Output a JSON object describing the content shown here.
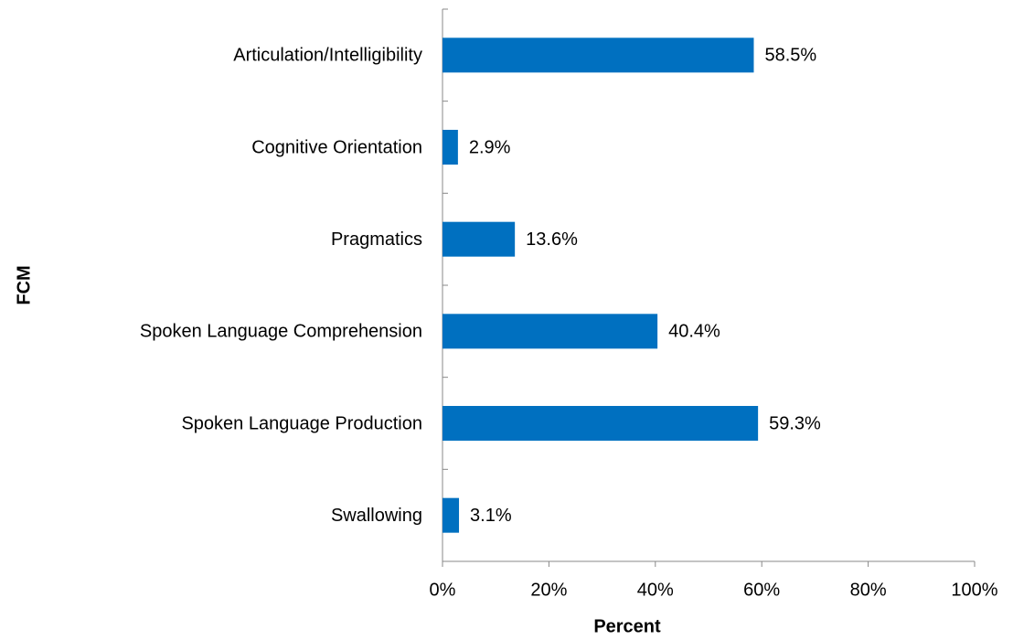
{
  "chart_data": {
    "type": "bar",
    "orientation": "horizontal",
    "x_label": "Percent",
    "y_label": "FCM",
    "categories": [
      "Articulation/Intelligibility",
      "Cognitive Orientation",
      "Pragmatics",
      "Spoken Language Comprehension",
      "Spoken Language Production",
      "Swallowing"
    ],
    "values": [
      58.5,
      2.9,
      13.6,
      40.4,
      59.3,
      3.1
    ],
    "value_labels": [
      "58.5%",
      "2.9%",
      "13.6%",
      "40.4%",
      "59.3%",
      "3.1%"
    ],
    "color": "#0070c0",
    "xlim": [
      0,
      100
    ],
    "xticks": [
      {
        "value": 0,
        "label": "0%"
      },
      {
        "value": 20,
        "label": "20%"
      },
      {
        "value": 40,
        "label": "40%"
      },
      {
        "value": 60,
        "label": "60%"
      },
      {
        "value": 80,
        "label": "80%"
      },
      {
        "value": 100,
        "label": "100%"
      }
    ],
    "grid": false
  }
}
